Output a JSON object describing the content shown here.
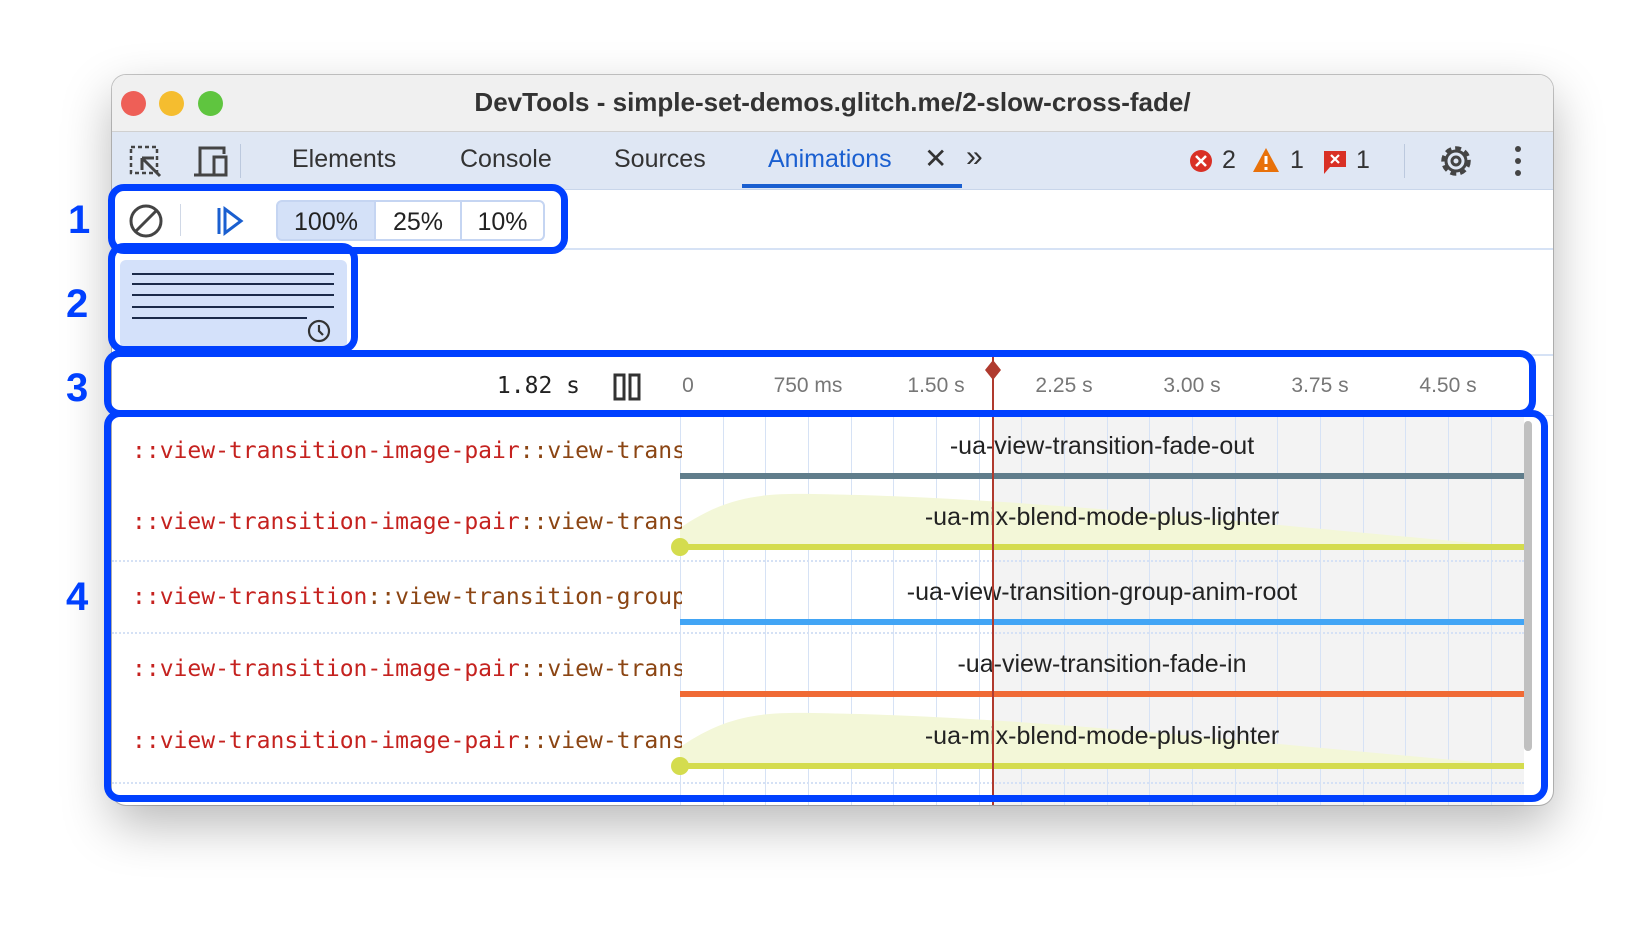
{
  "window": {
    "title": "DevTools - simple-set-demos.glitch.me/2-slow-cross-fade/"
  },
  "tabs": [
    {
      "label": "Elements"
    },
    {
      "label": "Console"
    },
    {
      "label": "Sources"
    },
    {
      "label": "Animations",
      "active": true
    }
  ],
  "status": {
    "errors": "2",
    "warnings": "1",
    "issues": "1"
  },
  "toolbar": {
    "speeds": [
      "100%",
      "25%",
      "10%"
    ],
    "selected_speed": "100%"
  },
  "timeline": {
    "current_time": "1.82 s",
    "ticks": [
      "0",
      "750 ms",
      "1.50 s",
      "2.25 s",
      "3.00 s",
      "3.75 s",
      "4.50 s"
    ],
    "scrubber_ms": 1820
  },
  "animations": [
    {
      "sel1": "::view-transition-image-pair",
      "sel2": "::view-transition-old(root)",
      "name": "-ua-view-transition-fade-out",
      "color": "#607d8b",
      "curve": false
    },
    {
      "sel1": "::view-transition-image-pair",
      "sel2": "::view-transition-old(root)",
      "name": "-ua-mix-blend-mode-plus-lighter",
      "color": "#d4dc4e",
      "curve": true
    },
    {
      "sel1": "::view-transition",
      "sel2": "::view-transition-group(root)",
      "name": "-ua-view-transition-group-anim-root",
      "color": "#42a5f5",
      "curve": false
    },
    {
      "sel1": "::view-transition-image-pair",
      "sel2": "::view-transition-new(root)",
      "name": "-ua-view-transition-fade-in",
      "color": "#f06a35",
      "curve": false
    },
    {
      "sel1": "::view-transition-image-pair",
      "sel2": "::view-transition-new(root)",
      "name": "-ua-mix-blend-mode-plus-lighter",
      "color": "#d4dc4e",
      "curve": true
    }
  ],
  "annotations": [
    "1",
    "2",
    "3",
    "4"
  ],
  "colors": {
    "accent": "#1a5fd0",
    "annotation": "#0040ff",
    "scrubber": "#b03a2e"
  }
}
